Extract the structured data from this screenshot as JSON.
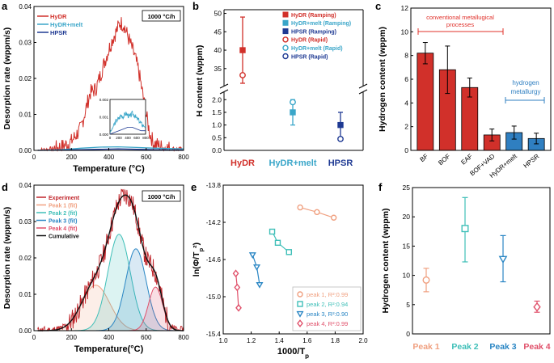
{
  "panels": {
    "a": {
      "letter": "a"
    },
    "b": {
      "letter": "b"
    },
    "c": {
      "letter": "c"
    },
    "d": {
      "letter": "d"
    },
    "e": {
      "letter": "e"
    },
    "f": {
      "letter": "f"
    }
  },
  "chart_data": [
    {
      "id": "a",
      "type": "line",
      "xlabel": "Temperature (°C)",
      "ylabel": "Desorption rate (wppm/s)",
      "xlim": [
        0,
        800
      ],
      "ylim": [
        0,
        0.04
      ],
      "xticks": [
        0,
        200,
        400,
        600,
        800
      ],
      "yticks": [
        0.0,
        0.01,
        0.02,
        0.03,
        0.04
      ],
      "yticklabels": [
        "0.00",
        "0.01",
        "0.02",
        "0.03",
        "0.04"
      ],
      "annotation": "1000 °C/h",
      "series": [
        {
          "name": "HyDR",
          "color": "#d1302a",
          "x": [
            20,
            100,
            150,
            200,
            250,
            280,
            300,
            330,
            350,
            380,
            400,
            420,
            440,
            460,
            480,
            500,
            520,
            540,
            560,
            580,
            600,
            620,
            640,
            660,
            680,
            700,
            720,
            750,
            780,
            800
          ],
          "values": [
            0.0,
            0.0004,
            0.001,
            0.0025,
            0.006,
            0.012,
            0.016,
            0.017,
            0.02,
            0.025,
            0.028,
            0.031,
            0.033,
            0.0355,
            0.035,
            0.032,
            0.029,
            0.026,
            0.022,
            0.016,
            0.01,
            0.0045,
            0.002,
            0.0015,
            0.001,
            0.0008,
            0.0006,
            0.0004,
            0.0003,
            0.0002
          ]
        },
        {
          "name": "HyDR+melt",
          "color": "#3aa6c9",
          "x": [
            20,
            150,
            250,
            350,
            450,
            550,
            650,
            800
          ],
          "values": [
            0.0,
            0.0002,
            0.0006,
            0.0009,
            0.001,
            0.0008,
            0.0006,
            0.0004
          ]
        },
        {
          "name": "HPSR",
          "color": "#1f3a93",
          "x": [
            20,
            150,
            250,
            350,
            450,
            550,
            650,
            800
          ],
          "values": [
            0.0,
            0.0001,
            0.0002,
            0.0003,
            0.0004,
            0.0003,
            0.0002,
            0.0001
          ]
        }
      ],
      "inset": {
        "xticks": [
          0,
          200,
          400,
          600,
          800
        ],
        "yticks": [
          0.0,
          0.001,
          0.002
        ],
        "yticklabels": [
          "0.000",
          "0.001",
          "0.002"
        ],
        "ylim": [
          0,
          0.002
        ],
        "series": [
          {
            "name": "HyDR+melt",
            "color": "#3aa6c9",
            "x": [
              0,
              50,
              100,
              150,
              200,
              250,
              300,
              350,
              400,
              450,
              500,
              550,
              600,
              650,
              700,
              750,
              800
            ],
            "values": [
              0.0001,
              0.0003,
              0.0006,
              0.0008,
              0.0009,
              0.0011,
              0.001,
              0.0012,
              0.0011,
              0.001,
              0.0012,
              0.0011,
              0.0009,
              0.0008,
              0.0006,
              0.0005,
              0.0004
            ]
          },
          {
            "name": "HPSR",
            "color": "#1f3a93",
            "x": [
              0,
              100,
              200,
              300,
              400,
              500,
              600,
              700,
              800
            ],
            "values": [
              0.0,
              0.0001,
              0.0002,
              0.0003,
              0.0004,
              0.0004,
              0.0003,
              0.0002,
              0.0002
            ]
          }
        ]
      }
    },
    {
      "id": "b",
      "type": "scatter",
      "ylabel": "H content (wppm)",
      "categories": [
        "HyDR",
        "HyDR+melt",
        "HPSR"
      ],
      "category_colors": [
        "#d1302a",
        "#3aa6c9",
        "#1f3a93"
      ],
      "yticks_upper": [
        35,
        40,
        45,
        50
      ],
      "yticks_lower": [
        0.0,
        0.5,
        1.0,
        1.5,
        2.0
      ],
      "yticklabels_lower": [
        "0.0",
        "0.5",
        "1.0",
        "1.5",
        "2.0"
      ],
      "ylim_upper": [
        31,
        51
      ],
      "ylim_lower": [
        0,
        2.2
      ],
      "legend": [
        {
          "label": "HyDR (Ramping)",
          "marker": "square-filled",
          "color": "#d1302a"
        },
        {
          "label": "HyDR+melt (Ramping)",
          "marker": "square-filled",
          "color": "#3aa6c9"
        },
        {
          "label": "HPSR (Ramping)",
          "marker": "square-filled",
          "color": "#1f3a93"
        },
        {
          "label": "HyDR (Rapid)",
          "marker": "circle-open",
          "color": "#d1302a"
        },
        {
          "label": "HyDR+melt (Rapid)",
          "marker": "circle-open",
          "color": "#3aa6c9"
        },
        {
          "label": "HPSR (Rapid)",
          "marker": "circle-open",
          "color": "#1f3a93"
        }
      ],
      "points": [
        {
          "category": "HyDR",
          "ramping": 40.0,
          "err_low": 31.0,
          "err_high": 49.0,
          "rapid": 33.2
        },
        {
          "category": "HyDR+melt",
          "ramping": 1.5,
          "err_low": 1.0,
          "err_high": 2.0,
          "rapid": 1.9
        },
        {
          "category": "HPSR",
          "ramping": 1.0,
          "err_low": 0.5,
          "err_high": 1.5,
          "rapid": 0.45
        }
      ]
    },
    {
      "id": "c",
      "type": "bar",
      "ylabel": "Hydrogen content (wppm)",
      "ylim": [
        0,
        12
      ],
      "yticks": [
        0,
        2,
        4,
        6,
        8,
        10,
        12
      ],
      "categories": [
        "BF",
        "BOF",
        "EAF",
        "BOF+VAD",
        "HyDR+melt",
        "HPSR"
      ],
      "values": [
        8.2,
        6.8,
        5.3,
        1.3,
        1.5,
        1.0
      ],
      "errors": [
        0.9,
        2.0,
        0.8,
        0.5,
        0.55,
        0.45
      ],
      "colors": [
        "#d1302a",
        "#d1302a",
        "#d1302a",
        "#d1302a",
        "#2f7fc1",
        "#2f7fc1"
      ],
      "group_labels": [
        {
          "text_lines": [
            "conventional metallugical",
            "processes"
          ],
          "color": "#e0302a"
        },
        {
          "text_lines": [
            "hydrogen",
            "metallurgy"
          ],
          "color": "#2f7fc1"
        }
      ]
    },
    {
      "id": "d",
      "type": "area",
      "xlabel": "Temperature(°C)",
      "ylabel": "Desorption rate (wppm/s)",
      "xlim": [
        0,
        800
      ],
      "ylim": [
        0,
        0.04
      ],
      "xticks": [
        0,
        200,
        400,
        600,
        800
      ],
      "yticks": [
        0.0,
        0.01,
        0.02,
        0.03,
        0.04
      ],
      "yticklabels": [
        "0.00",
        "0.01",
        "0.02",
        "0.03",
        "0.04"
      ],
      "annotation": "1000 °C/h",
      "legend": [
        {
          "label": "Experiment",
          "color": "#c0242a"
        },
        {
          "label": "Peak 1 (fit)",
          "color": "#f0a080"
        },
        {
          "label": "Peak 2 (fit)",
          "color": "#3fbfb8"
        },
        {
          "label": "Peak 3 (fit)",
          "color": "#2a86c4"
        },
        {
          "label": "Peak 4 (fit)",
          "color": "#e0506a"
        },
        {
          "label": "Cumulative",
          "color": "#111111"
        }
      ],
      "peaks": [
        {
          "name": "Peak 1 (fit)",
          "center": 330,
          "height": 0.0125,
          "width": 75,
          "color": "#f0a080"
        },
        {
          "name": "Peak 2 (fit)",
          "center": 455,
          "height": 0.0265,
          "width": 60,
          "color": "#3fbfb8"
        },
        {
          "name": "Peak 3 (fit)",
          "center": 545,
          "height": 0.0225,
          "width": 55,
          "color": "#2a86c4"
        },
        {
          "name": "Peak 4 (fit)",
          "center": 650,
          "height": 0.012,
          "width": 38,
          "color": "#e0506a"
        }
      ]
    },
    {
      "id": "e",
      "type": "scatter",
      "xlabel": "1000/T_p",
      "ylabel": "ln(Φ/T_p²)",
      "xlim": [
        1.0,
        2.0
      ],
      "ylim": [
        -15.4,
        -13.8
      ],
      "xticks": [
        1.0,
        1.2,
        1.4,
        1.6,
        1.8,
        2.0
      ],
      "xticklabels": [
        "1.0",
        "1.2",
        "1.4",
        "1.6",
        "1.8",
        "2.0"
      ],
      "yticks": [
        -15.4,
        -15.0,
        -14.6,
        -14.2,
        -13.8
      ],
      "yticklabels": [
        "-15.4",
        "-15.0",
        "-14.6",
        "-14.2",
        "-13.8"
      ],
      "series": [
        {
          "name": "peak 1",
          "r2": "R²:0.99",
          "marker": "circle",
          "color": "#f0a080",
          "x": [
            1.55,
            1.67,
            1.79
          ],
          "values": [
            -14.04,
            -14.09,
            -14.15
          ]
        },
        {
          "name": "peak 2",
          "r2": "R²:0.94",
          "marker": "square",
          "color": "#3fbfb8",
          "x": [
            1.35,
            1.39,
            1.47
          ],
          "values": [
            -14.3,
            -14.42,
            -14.52
          ]
        },
        {
          "name": "peak 3",
          "r2": "R²:0.90",
          "marker": "triangle-down",
          "color": "#2a86c4",
          "x": [
            1.21,
            1.24,
            1.26
          ],
          "values": [
            -14.55,
            -14.68,
            -14.87
          ]
        },
        {
          "name": "peak 4",
          "r2": "R²:0.99",
          "marker": "diamond",
          "color": "#e0506a",
          "x": [
            1.09,
            1.1,
            1.11
          ],
          "values": [
            -14.75,
            -14.9,
            -15.12
          ]
        }
      ]
    },
    {
      "id": "f",
      "type": "scatter",
      "ylabel": "Hydrogen content (wppm)",
      "ylim": [
        0,
        25
      ],
      "yticks": [
        0,
        5,
        10,
        15,
        20,
        25
      ],
      "categories": [
        "Peak 1",
        "Peak 2",
        "Peak 3",
        "Peak 4"
      ],
      "category_colors": [
        "#f0a080",
        "#3fbfb8",
        "#2a86c4",
        "#e0506a"
      ],
      "points": [
        {
          "category": "Peak 1",
          "marker": "circle",
          "value": 9.2,
          "err_low": 7.2,
          "err_high": 11.2
        },
        {
          "category": "Peak 2",
          "marker": "square",
          "value": 18.0,
          "err_low": 12.3,
          "err_high": 23.3
        },
        {
          "category": "Peak 3",
          "marker": "triangle-down",
          "value": 12.8,
          "err_low": 8.9,
          "err_high": 16.8
        },
        {
          "category": "Peak 4",
          "marker": "diamond",
          "value": 4.6,
          "err_low": 3.7,
          "err_high": 5.6
        }
      ]
    }
  ]
}
